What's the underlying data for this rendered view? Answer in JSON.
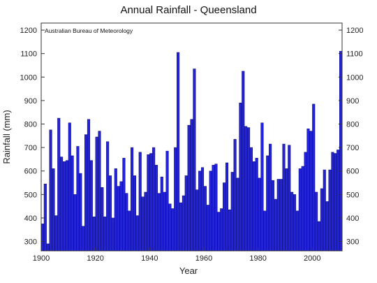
{
  "chart_data": {
    "type": "bar",
    "title": "Annual Rainfall - Queensland",
    "xlabel": "Year",
    "ylabel": "Rainfall (mm)",
    "annotation": "Australian Bureau of Meteorology",
    "xlim": [
      1900,
      2011
    ],
    "ylim": [
      260,
      1230
    ],
    "x_ticks": [
      1900,
      1920,
      1940,
      1960,
      1980,
      2000
    ],
    "y_ticks": [
      300,
      400,
      500,
      600,
      700,
      800,
      900,
      1000,
      1100,
      1200
    ],
    "y_axis_right": true,
    "grid": false,
    "bar_color": "#2323d8",
    "bar_edge_color": "#0a0a7a",
    "x": [
      1900,
      1901,
      1902,
      1903,
      1904,
      1905,
      1906,
      1907,
      1908,
      1909,
      1910,
      1911,
      1912,
      1913,
      1914,
      1915,
      1916,
      1917,
      1918,
      1919,
      1920,
      1921,
      1922,
      1923,
      1924,
      1925,
      1926,
      1927,
      1928,
      1929,
      1930,
      1931,
      1932,
      1933,
      1934,
      1935,
      1936,
      1937,
      1938,
      1939,
      1940,
      1941,
      1942,
      1943,
      1944,
      1945,
      1946,
      1947,
      1948,
      1949,
      1950,
      1951,
      1952,
      1953,
      1954,
      1955,
      1956,
      1957,
      1958,
      1959,
      1960,
      1961,
      1962,
      1963,
      1964,
      1965,
      1966,
      1967,
      1968,
      1969,
      1970,
      1971,
      1972,
      1973,
      1974,
      1975,
      1976,
      1977,
      1978,
      1979,
      1980,
      1981,
      1982,
      1983,
      1984,
      1985,
      1986,
      1987,
      1988,
      1989,
      1990,
      1991,
      1992,
      1993,
      1994,
      1995,
      1996,
      1997,
      1998,
      1999,
      2000,
      2001,
      2002,
      2003,
      2004,
      2005,
      2006,
      2007,
      2008,
      2009,
      2010
    ],
    "values": [
      375,
      545,
      290,
      775,
      610,
      410,
      825,
      660,
      640,
      645,
      805,
      665,
      500,
      705,
      590,
      365,
      755,
      820,
      645,
      405,
      745,
      770,
      530,
      405,
      725,
      580,
      400,
      610,
      535,
      555,
      655,
      505,
      430,
      700,
      580,
      410,
      680,
      490,
      510,
      670,
      675,
      700,
      625,
      505,
      575,
      510,
      685,
      460,
      440,
      700,
      1105,
      465,
      495,
      580,
      795,
      820,
      1035,
      520,
      600,
      615,
      535,
      455,
      600,
      625,
      630,
      425,
      440,
      550,
      635,
      435,
      595,
      735,
      570,
      890,
      1025,
      790,
      785,
      700,
      640,
      655,
      570,
      805,
      430,
      665,
      715,
      560,
      480,
      565,
      565,
      715,
      610,
      710,
      510,
      500,
      430,
      610,
      620,
      680,
      780,
      770,
      885,
      510,
      385,
      525,
      605,
      470,
      605,
      680,
      675,
      690,
      1110
    ]
  }
}
